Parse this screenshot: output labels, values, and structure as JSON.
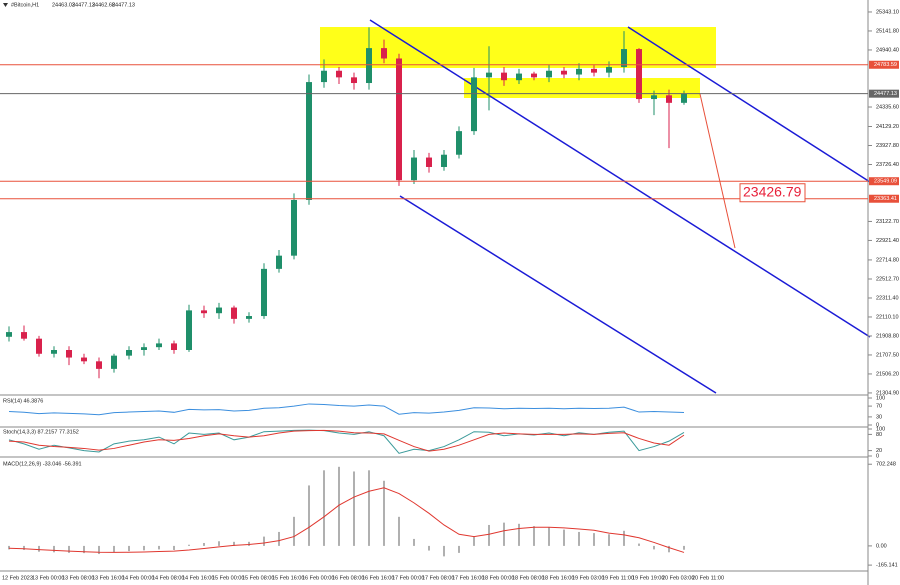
{
  "chart_data": {
    "type": "candlestick",
    "title": "#Bitcoin,H1",
    "header_values": [
      24463.03,
      24477.13,
      24462.68,
      24477.13
    ],
    "colors": {
      "up": "#1f8f6a",
      "down": "#d9214c"
    },
    "open": [
      21900,
      21950,
      21880,
      21720,
      21760,
      21680,
      21640,
      21560,
      21700,
      21760,
      21790,
      21830,
      21760,
      22180,
      22150,
      22210,
      22090,
      22120,
      22620,
      22760,
      23350,
      24600,
      24720,
      24650,
      24590,
      24960,
      24850,
      23560,
      23800,
      23700,
      23830,
      24080,
      24650,
      24700,
      24620,
      24690,
      24650,
      24720,
      24680,
      24740,
      24700,
      24760,
      24950,
      24420,
      24460,
      24380
    ],
    "high": [
      22010,
      22020,
      21910,
      21800,
      21800,
      21720,
      21680,
      21720,
      21800,
      21830,
      21880,
      21860,
      22240,
      22230,
      22260,
      22230,
      22160,
      22680,
      22820,
      23420,
      24680,
      24840,
      24760,
      24700,
      25180,
      25050,
      24900,
      23880,
      23850,
      23880,
      24130,
      24750,
      24980,
      24760,
      24740,
      24710,
      24780,
      24760,
      24800,
      24780,
      24820,
      25140,
      24960,
      24510,
      24520,
      24510
    ],
    "low": [
      21850,
      21860,
      21690,
      21680,
      21600,
      21610,
      21460,
      21520,
      21660,
      21700,
      21760,
      21720,
      21740,
      22100,
      22090,
      22040,
      22050,
      22090,
      22580,
      22720,
      23300,
      24540,
      24580,
      24520,
      24520,
      24800,
      23500,
      23520,
      23640,
      23660,
      23790,
      24040,
      24300,
      24560,
      24580,
      24620,
      24600,
      24640,
      24620,
      24660,
      24650,
      24700,
      24380,
      24250,
      23900,
      24360
    ],
    "close": [
      21950,
      21880,
      21720,
      21760,
      21680,
      21640,
      21560,
      21700,
      21760,
      21790,
      21830,
      21760,
      22180,
      22150,
      22210,
      22090,
      22120,
      22620,
      22760,
      23350,
      24600,
      24720,
      24650,
      24590,
      24960,
      24850,
      23560,
      23800,
      23700,
      23830,
      24080,
      24650,
      24700,
      24620,
      24690,
      24650,
      24720,
      24680,
      24740,
      24700,
      24760,
      24950,
      24420,
      24460,
      24380,
      24477.13
    ],
    "ylim": [
      21283,
      25470
    ],
    "yticks": [
      {
        "value": 25343.1,
        "label": "25343.10"
      },
      {
        "value": 25141.8,
        "label": "25141.80"
      },
      {
        "value": 24940.4,
        "label": "24940.40"
      },
      {
        "value": 24335.6,
        "label": "24335.60"
      },
      {
        "value": 24129.2,
        "label": "24129.20"
      },
      {
        "value": 23927.8,
        "label": "23927.80"
      },
      {
        "value": 23726.4,
        "label": "23726.40"
      },
      {
        "value": 23122.7,
        "label": "23122.70"
      },
      {
        "value": 22921.4,
        "label": "22921.40"
      },
      {
        "value": 22714.8,
        "label": "22714.80"
      },
      {
        "value": 22512.7,
        "label": "22512.70"
      },
      {
        "value": 22311.4,
        "label": "22311.40"
      },
      {
        "value": 22110.1,
        "label": "22110.10"
      },
      {
        "value": 21908.8,
        "label": "21908.80"
      },
      {
        "value": 21707.5,
        "label": "21707.50"
      },
      {
        "value": 21506.2,
        "label": "21506.20"
      },
      {
        "value": 21304.9,
        "label": "21304.90"
      }
    ],
    "levels": [
      {
        "value": 24783.59,
        "color": "#e8503a"
      },
      {
        "value": 24477.13,
        "color": "#666666"
      },
      {
        "value": 23549.09,
        "color": "#e8503a"
      },
      {
        "value": 23363.41,
        "color": "#e8503a"
      }
    ],
    "price_label": 23426.79,
    "x_labels": [
      "12 Feb 2023",
      "13 Feb 00:00",
      "13 Feb 08:00",
      "13 Feb 16:00",
      "14 Feb 00:00",
      "14 Feb 08:00",
      "14 Feb 16:00",
      "15 Feb 00:00",
      "15 Feb 08:00",
      "15 Feb 16:00",
      "16 Feb 00:00",
      "16 Feb 08:00",
      "16 Feb 16:00",
      "17 Feb 00:00",
      "17 Feb 08:00",
      "17 Feb 16:00",
      "18 Feb 00:00",
      "18 Feb 08:00",
      "18 Feb 16:00",
      "19 Feb 03:00",
      "19 Feb 11:00",
      "19 Feb 19:00",
      "20 Feb 03:00",
      "20 Feb 11:00"
    ],
    "indicators": [
      {
        "label": "RSI(14) 46.3876",
        "ylim": [
          0,
          100
        ],
        "yticks": [
          100,
          70,
          30,
          0
        ],
        "series": [
          {
            "color": "#3b8ede",
            "values": [
              50,
              47,
              42,
              45,
              43,
              41,
              38,
              46,
              48,
              50,
              52,
              47,
              58,
              56,
              57,
              52,
              54,
              62,
              64,
              70,
              78,
              76,
              72,
              70,
              74,
              70,
              40,
              46,
              44,
              48,
              54,
              64,
              63,
              60,
              62,
              61,
              62,
              60,
              62,
              61,
              62,
              66,
              48,
              50,
              48,
              46.3876
            ]
          }
        ]
      },
      {
        "label": "Stoch(14,3,3) 87.2157 77.3152",
        "ylim": [
          0,
          100
        ],
        "yticks": [
          100,
          80,
          20,
          0
        ],
        "series": [
          {
            "color": "#3a9a9a",
            "values": [
              60,
              45,
              25,
              40,
              30,
              20,
              15,
              45,
              55,
              60,
              70,
              45,
              85,
              80,
              85,
              60,
              70,
              90,
              92,
              95,
              96,
              94,
              85,
              80,
              90,
              75,
              10,
              25,
              20,
              35,
              60,
              90,
              88,
              75,
              82,
              78,
              85,
              75,
              86,
              80,
              88,
              92,
              20,
              35,
              55,
              87.2157
            ]
          },
          {
            "color": "#e0372f",
            "values": [
              55,
              52,
              40,
              35,
              32,
              28,
              22,
              28,
              40,
              52,
              60,
              58,
              65,
              75,
              82,
              75,
              70,
              75,
              85,
              92,
              94,
              95,
              92,
              86,
              85,
              82,
              58,
              35,
              18,
              25,
              40,
              60,
              80,
              85,
              82,
              80,
              80,
              80,
              82,
              80,
              84,
              86,
              65,
              48,
              40,
              77.3152
            ]
          }
        ]
      },
      {
        "label": "MACD(12,26,9) -33.046 -56.391",
        "ylim": [
          -190,
          730
        ],
        "yticks": [
          702.248,
          {
            "value": 0,
            "label": "0.00"
          },
          -165.141
        ],
        "histogram": {
          "color": "#b0b0b0",
          "values": [
            -30,
            -35,
            -50,
            -55,
            -60,
            -62,
            -70,
            -55,
            -45,
            -38,
            -30,
            -35,
            10,
            25,
            40,
            35,
            35,
            80,
            120,
            250,
            520,
            650,
            680,
            640,
            650,
            560,
            250,
            60,
            -40,
            -90,
            -60,
            80,
            180,
            200,
            190,
            170,
            160,
            140,
            120,
            110,
            100,
            130,
            20,
            -30,
            -55,
            -33.046
          ]
        },
        "series": [
          {
            "color": "#e0372f",
            "values": [
              -20,
              -25,
              -32,
              -38,
              -45,
              -50,
              -55,
              -56,
              -55,
              -52,
              -48,
              -45,
              -35,
              -22,
              -8,
              5,
              12,
              25,
              45,
              80,
              160,
              250,
              350,
              420,
              470,
              500,
              450,
              370,
              280,
              180,
              100,
              80,
              100,
              130,
              150,
              160,
              160,
              155,
              145,
              135,
              110,
              95,
              70,
              30,
              -15,
              -56.391
            ]
          }
        ]
      }
    ]
  }
}
